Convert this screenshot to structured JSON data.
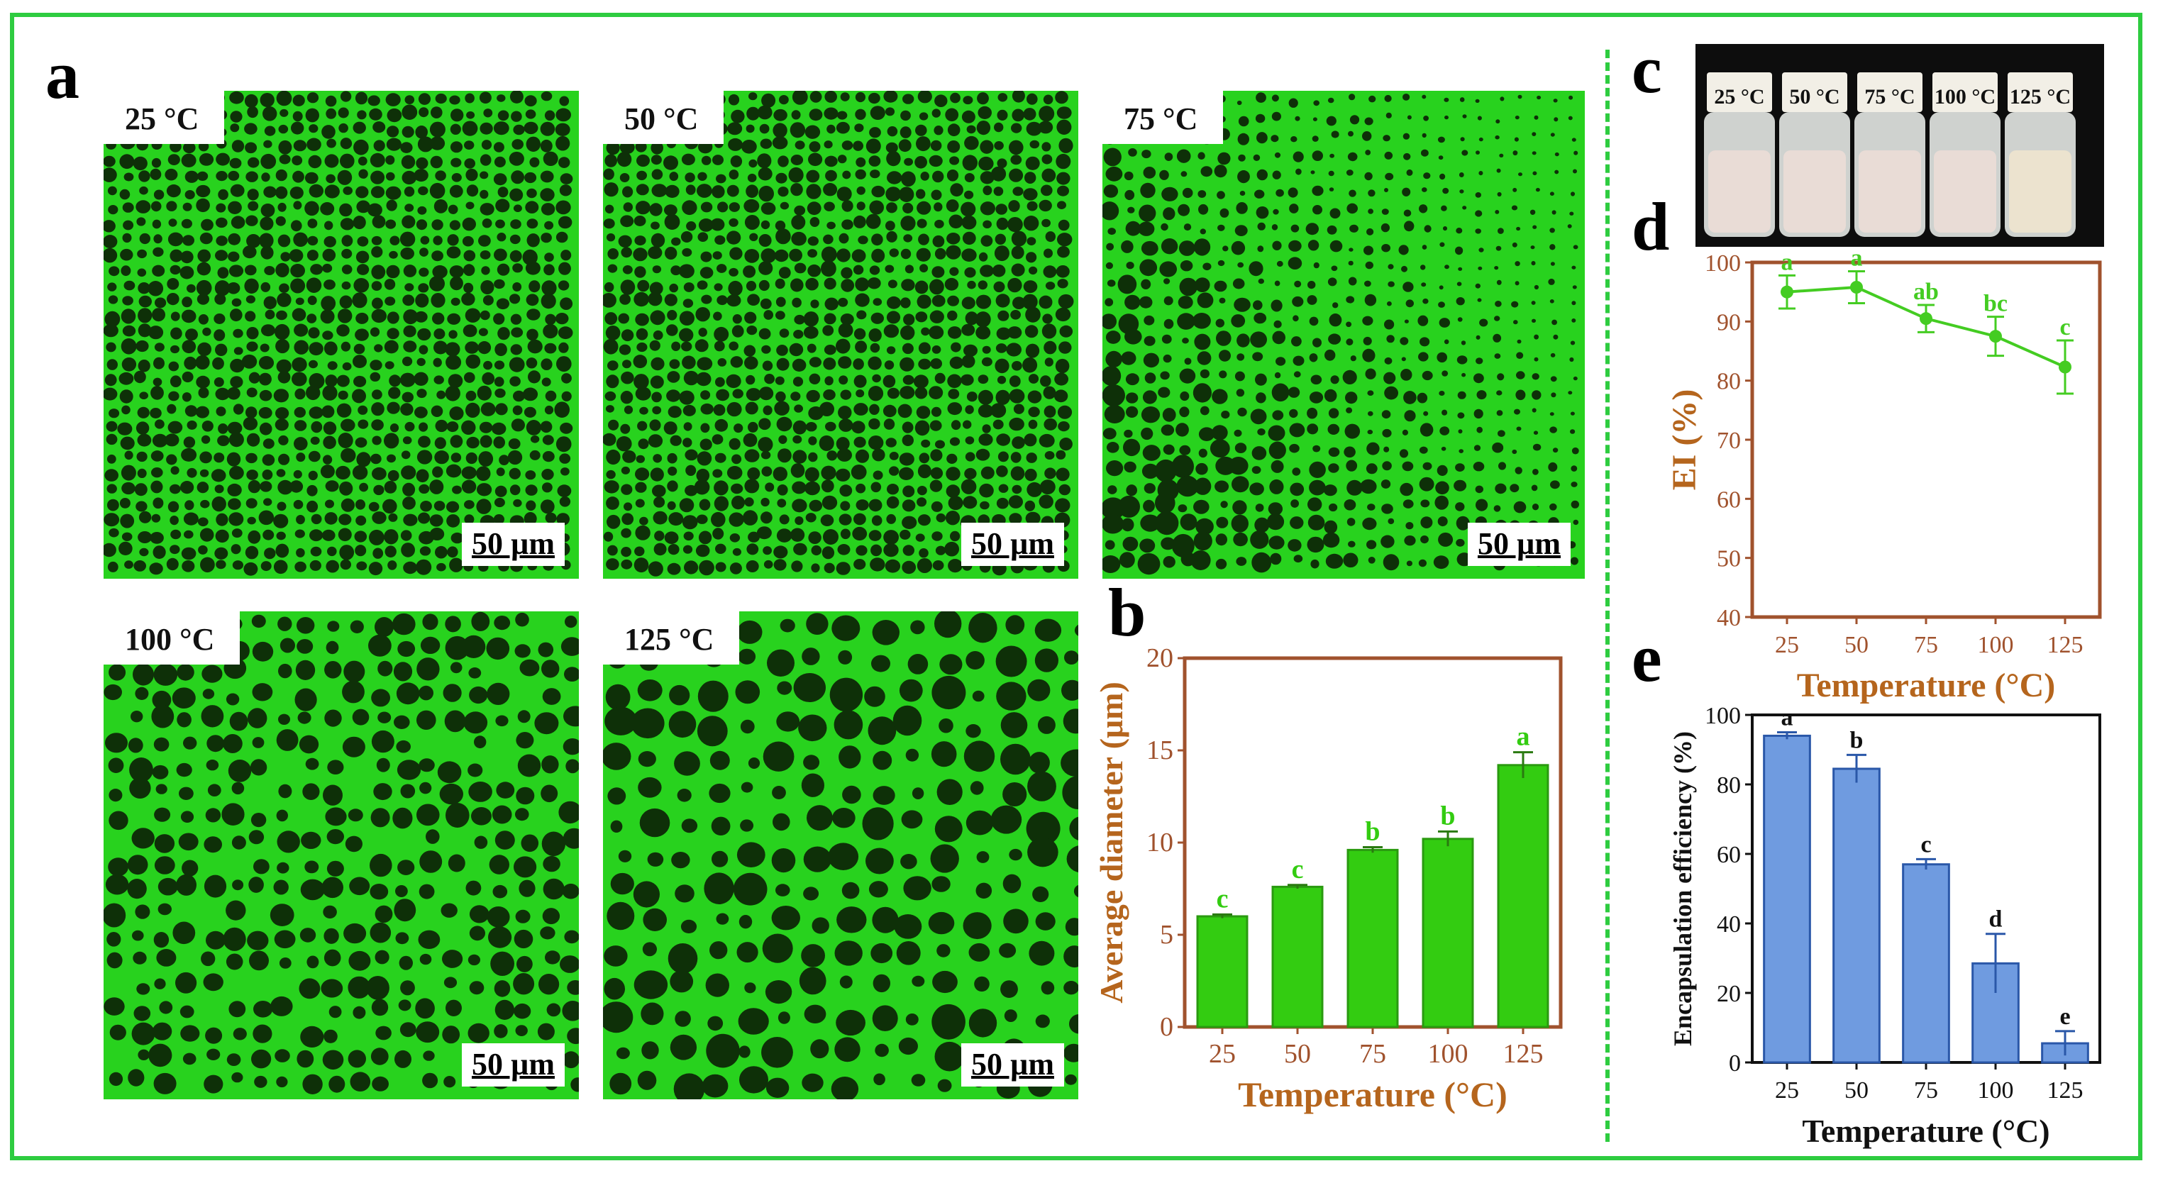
{
  "panels": {
    "a": {
      "label": "a",
      "images": [
        {
          "temp": "25 °C",
          "scale": "50 µm",
          "drop_size": "small"
        },
        {
          "temp": "50 °C",
          "scale": "50 µm",
          "drop_size": "small"
        },
        {
          "temp": "75 °C",
          "scale": "50 µm",
          "drop_size": "graded"
        },
        {
          "temp": "100 °C",
          "scale": "50 µm",
          "drop_size": "medium"
        },
        {
          "temp": "125 °C",
          "scale": "50 µm",
          "drop_size": "large"
        }
      ]
    },
    "b": {
      "label": "b"
    },
    "c": {
      "label": "c",
      "vials": [
        "25 °C",
        "50 °C",
        "75 °C",
        "100 °C",
        "125 °C"
      ]
    },
    "d": {
      "label": "d"
    },
    "e": {
      "label": "e"
    }
  },
  "colors": {
    "frame": "#2ecc40",
    "fluor": "#28d21e",
    "droplet": "#0e3008",
    "bar_green": "#33cc11",
    "line_green": "#44cc22",
    "axis_brown": "#a0522d",
    "title_brown": "#b5651d",
    "bar_blue": "#6f9be0",
    "bar_blue_edge": "#2a57a8"
  },
  "chart_data": [
    {
      "id": "b",
      "type": "bar",
      "categories": [
        "25",
        "50",
        "75",
        "100",
        "125"
      ],
      "values": [
        6.0,
        7.6,
        9.6,
        10.2,
        14.2
      ],
      "errors": [
        0.1,
        0.1,
        0.15,
        0.4,
        0.7
      ],
      "letters": [
        "c",
        "c",
        "b",
        "b",
        "a"
      ],
      "xlabel": "Temperature (°C)",
      "ylabel": "Average diameter (μm)",
      "ylim": [
        0,
        20
      ],
      "yticks": [
        "0",
        "5",
        "10",
        "15",
        "20"
      ]
    },
    {
      "id": "d",
      "type": "line",
      "x": [
        "25",
        "50",
        "75",
        "100",
        "125"
      ],
      "values": [
        95,
        95.8,
        90.5,
        87.5,
        82.3
      ],
      "errors": [
        2.8,
        2.7,
        2.3,
        3.3,
        4.5
      ],
      "letters": [
        "a",
        "a",
        "ab",
        "bc",
        "c"
      ],
      "xlabel": "Temperature (°C)",
      "ylabel": "EI (%)",
      "ylim": [
        40,
        100
      ],
      "yticks": [
        "40",
        "50",
        "60",
        "70",
        "80",
        "90",
        "100"
      ]
    },
    {
      "id": "e",
      "type": "bar",
      "categories": [
        "25",
        "50",
        "75",
        "100",
        "125"
      ],
      "values": [
        94,
        84.5,
        57,
        28.5,
        5.5
      ],
      "errors": [
        1,
        4,
        1.5,
        8.5,
        3.5
      ],
      "letters": [
        "a",
        "b",
        "c",
        "d",
        "e"
      ],
      "xlabel": "Temperature (°C)",
      "ylabel": "Encapsulation efficiency (%)",
      "ylim": [
        0,
        100
      ],
      "yticks": [
        "0",
        "20",
        "40",
        "60",
        "80",
        "100"
      ]
    }
  ]
}
